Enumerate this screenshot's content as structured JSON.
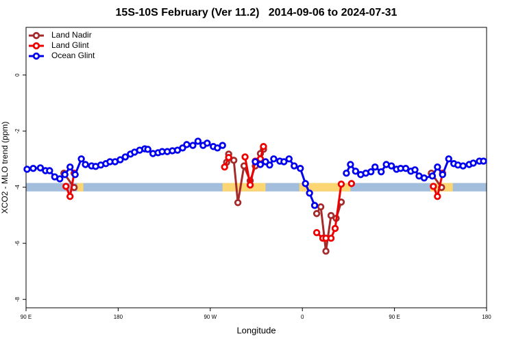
{
  "chart_data": {
    "type": "line",
    "title": "15S-10S February (Ver 11.2)   2014-09-06 to 2024-07-31",
    "x_label": "Longitude",
    "y_label": "XCO2 - MLO trend (ppm)",
    "xlim": [
      90,
      540
    ],
    "ylim": [
      -8.3,
      1.7
    ],
    "xticks": [
      {
        "value": 90,
        "label": "90 E"
      },
      180,
      {
        "value": 270,
        "label": "90 W"
      },
      {
        "value": 360,
        "label": "0"
      },
      {
        "value": 450,
        "label": "90 E"
      },
      {
        "value": 540,
        "label": "180"
      }
    ],
    "yticks": [
      0,
      -2,
      -4,
      -6,
      -8
    ],
    "legend": "top-left",
    "band": {
      "ylim": [
        -4.15,
        -3.85
      ],
      "color": "#a3bddc",
      "land_color": "#fbd672",
      "land": [
        [
          140,
          146
        ],
        [
          282,
          324
        ],
        [
          357,
          407
        ],
        [
          485,
          507
        ]
      ]
    },
    "series": [
      {
        "name": "Land Nadir",
        "color": "#a52a2a",
        "x": [
          127,
          137,
          null,
          286,
          288,
          293,
          297,
          303,
          309,
          314,
          319,
          322,
          null,
          374,
          378,
          383,
          388,
          393,
          398,
          null,
          486,
          496
        ],
        "values": [
          -3.5,
          -4.01,
          null,
          -3.11,
          -2.82,
          -3.04,
          -4.55,
          -3.24,
          -3.77,
          -3.24,
          -2.8,
          -2.65,
          null,
          -4.94,
          -4.7,
          -6.28,
          -5.01,
          -5.11,
          -4.53,
          null,
          -3.5,
          -4.01
        ]
      },
      {
        "name": "Land Glint",
        "color": "#ee0000",
        "x": [
          129,
          133,
          137,
          null,
          284,
          288,
          null,
          304,
          309,
          314,
          319,
          322,
          null,
          374,
          380,
          383,
          388,
          392,
          398,
          null,
          408,
          null,
          488,
          492,
          497
        ],
        "values": [
          -3.97,
          -4.33,
          -3.5,
          null,
          -3.28,
          -2.94,
          null,
          -2.92,
          -3.92,
          -3.07,
          -2.99,
          -2.55,
          null,
          -5.62,
          -5.82,
          -5.82,
          -5.82,
          -5.47,
          -3.89,
          null,
          -3.87,
          null,
          -3.97,
          -4.33,
          -3.5
        ]
      },
      {
        "name": "Ocean Glint",
        "color": "#0000ee",
        "x": [
          91,
          97,
          104,
          109,
          113,
          118,
          123,
          128,
          133,
          138,
          144,
          148,
          154,
          158,
          163,
          168,
          172,
          177,
          182,
          187,
          192,
          196,
          201,
          206,
          209,
          214,
          219,
          223,
          228,
          233,
          238,
          243,
          247,
          253,
          258,
          263,
          267,
          273,
          277,
          282,
          null,
          314,
          319,
          324,
          328,
          332,
          338,
          342,
          347,
          352,
          358,
          363,
          367,
          372,
          null,
          403,
          407,
          412,
          417,
          422,
          427,
          431,
          437,
          442,
          447,
          452,
          456,
          461,
          466,
          470,
          474,
          479,
          487,
          492,
          497,
          503,
          508,
          512,
          517,
          523,
          527,
          533,
          537
        ],
        "values": [
          -3.36,
          -3.33,
          -3.31,
          -3.41,
          -3.41,
          -3.63,
          -3.7,
          -3.55,
          -3.28,
          -3.55,
          -2.99,
          -3.19,
          -3.24,
          -3.26,
          -3.21,
          -3.16,
          -3.09,
          -3.09,
          -3.02,
          -2.92,
          -2.82,
          -2.75,
          -2.68,
          -2.63,
          -2.65,
          -2.8,
          -2.77,
          -2.73,
          -2.73,
          -2.7,
          -2.68,
          -2.6,
          -2.48,
          -2.51,
          -2.36,
          -2.51,
          -2.43,
          -2.55,
          -2.6,
          -2.51,
          null,
          -3.09,
          -3.19,
          -3.09,
          -3.21,
          -2.99,
          -3.07,
          -3.09,
          -2.99,
          -3.24,
          -3.33,
          -3.87,
          -4.21,
          -4.65,
          null,
          -3.5,
          -3.19,
          -3.43,
          -3.55,
          -3.5,
          -3.45,
          -3.28,
          -3.45,
          -3.19,
          -3.24,
          -3.36,
          -3.33,
          -3.33,
          -3.43,
          -3.38,
          -3.6,
          -3.67,
          -3.6,
          -3.28,
          -3.55,
          -2.99,
          -3.16,
          -3.21,
          -3.24,
          -3.19,
          -3.14,
          -3.07,
          -3.07
        ]
      }
    ]
  }
}
